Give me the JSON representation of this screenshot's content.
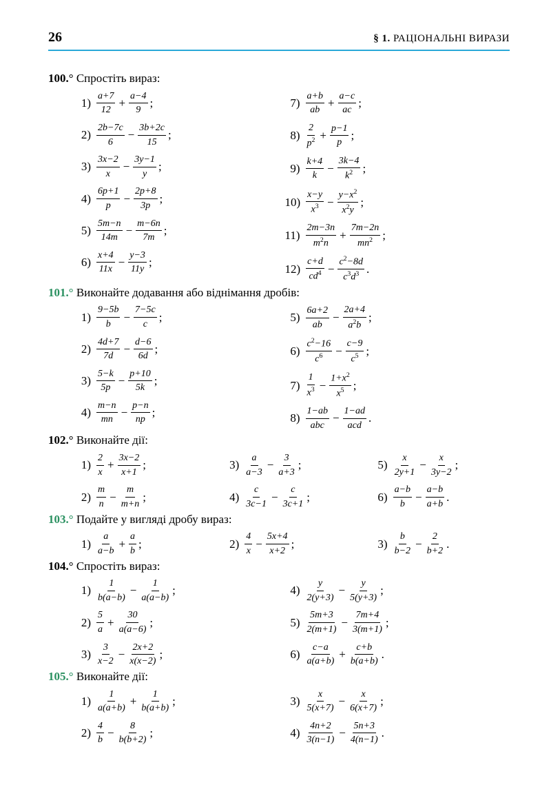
{
  "pageNumber": "26",
  "sectionTitle": {
    "prefix": "§ 1.",
    "text": "РАЦІОНАЛЬНІ ВИРАЗИ"
  },
  "problems": [
    {
      "num": "100.°",
      "green": false,
      "text": "Спростіть вираз:",
      "cols": 2,
      "items": [
        {
          "n": "1)",
          "parts": [
            {
              "t": "f",
              "nu": "a+7",
              "de": "12"
            },
            {
              "t": "op",
              "v": "+"
            },
            {
              "t": "f",
              "nu": "a−4",
              "de": "9"
            },
            {
              "t": "p",
              "v": ";"
            }
          ]
        },
        {
          "n": "2)",
          "parts": [
            {
              "t": "f",
              "nu": "2b−7c",
              "de": "6"
            },
            {
              "t": "op",
              "v": "−"
            },
            {
              "t": "f",
              "nu": "3b+2c",
              "de": "15"
            },
            {
              "t": "p",
              "v": ";"
            }
          ]
        },
        {
          "n": "3)",
          "parts": [
            {
              "t": "f",
              "nu": "3x−2",
              "de": "x"
            },
            {
              "t": "op",
              "v": "−"
            },
            {
              "t": "f",
              "nu": "3y−1",
              "de": "y"
            },
            {
              "t": "p",
              "v": ";"
            }
          ]
        },
        {
          "n": "4)",
          "parts": [
            {
              "t": "f",
              "nu": "6p+1",
              "de": "p"
            },
            {
              "t": "op",
              "v": "−"
            },
            {
              "t": "f",
              "nu": "2p+8",
              "de": "3p"
            },
            {
              "t": "p",
              "v": ";"
            }
          ]
        },
        {
          "n": "5)",
          "parts": [
            {
              "t": "f",
              "nu": "5m−n",
              "de": "14m"
            },
            {
              "t": "op",
              "v": "−"
            },
            {
              "t": "f",
              "nu": "m−6n",
              "de": "7m"
            },
            {
              "t": "p",
              "v": ";"
            }
          ]
        },
        {
          "n": "6)",
          "parts": [
            {
              "t": "f",
              "nu": "x+4",
              "de": "11x"
            },
            {
              "t": "op",
              "v": "−"
            },
            {
              "t": "f",
              "nu": "y−3",
              "de": "11y"
            },
            {
              "t": "p",
              "v": ";"
            }
          ]
        },
        {
          "n": "7)",
          "parts": [
            {
              "t": "f",
              "nu": "a+b",
              "de": "ab"
            },
            {
              "t": "op",
              "v": "+"
            },
            {
              "t": "f",
              "nu": "a−c",
              "de": "ac"
            },
            {
              "t": "p",
              "v": ";"
            }
          ]
        },
        {
          "n": "8)",
          "parts": [
            {
              "t": "f",
              "nu": "2",
              "de": "p²"
            },
            {
              "t": "op",
              "v": "+"
            },
            {
              "t": "f",
              "nu": "p−1",
              "de": "p"
            },
            {
              "t": "p",
              "v": ";"
            }
          ]
        },
        {
          "n": "9)",
          "parts": [
            {
              "t": "f",
              "nu": "k+4",
              "de": "k"
            },
            {
              "t": "op",
              "v": "−"
            },
            {
              "t": "f",
              "nu": "3k−4",
              "de": "k²"
            },
            {
              "t": "p",
              "v": ";"
            }
          ]
        },
        {
          "n": "10)",
          "parts": [
            {
              "t": "f",
              "nu": "x−y",
              "de": "x³"
            },
            {
              "t": "op",
              "v": "−"
            },
            {
              "t": "f",
              "nu": "y−x²",
              "de": "x²y"
            },
            {
              "t": "p",
              "v": ";"
            }
          ]
        },
        {
          "n": "11)",
          "parts": [
            {
              "t": "f",
              "nu": "2m−3n",
              "de": "m²n"
            },
            {
              "t": "op",
              "v": "+"
            },
            {
              "t": "f",
              "nu": "7m−2n",
              "de": "mn²"
            },
            {
              "t": "p",
              "v": ";"
            }
          ]
        },
        {
          "n": "12)",
          "parts": [
            {
              "t": "f",
              "nu": "c+d",
              "de": "cd⁴"
            },
            {
              "t": "op",
              "v": "−"
            },
            {
              "t": "f",
              "nu": "c²−8d",
              "de": "c³d³"
            },
            {
              "t": "p",
              "v": "."
            }
          ]
        }
      ]
    },
    {
      "num": "101.°",
      "green": true,
      "text": "Виконайте додавання або віднімання дробів:",
      "cols": 2,
      "items": [
        {
          "n": "1)",
          "parts": [
            {
              "t": "f",
              "nu": "9−5b",
              "de": "b"
            },
            {
              "t": "op",
              "v": "−"
            },
            {
              "t": "f",
              "nu": "7−5c",
              "de": "c"
            },
            {
              "t": "p",
              "v": ";"
            }
          ]
        },
        {
          "n": "2)",
          "parts": [
            {
              "t": "f",
              "nu": "4d+7",
              "de": "7d"
            },
            {
              "t": "op",
              "v": "−"
            },
            {
              "t": "f",
              "nu": "d−6",
              "de": "6d"
            },
            {
              "t": "p",
              "v": ";"
            }
          ]
        },
        {
          "n": "3)",
          "parts": [
            {
              "t": "f",
              "nu": "5−k",
              "de": "5p"
            },
            {
              "t": "op",
              "v": "−"
            },
            {
              "t": "f",
              "nu": "p+10",
              "de": "5k"
            },
            {
              "t": "p",
              "v": ";"
            }
          ]
        },
        {
          "n": "4)",
          "parts": [
            {
              "t": "f",
              "nu": "m−n",
              "de": "mn"
            },
            {
              "t": "op",
              "v": "−"
            },
            {
              "t": "f",
              "nu": "p−n",
              "de": "np"
            },
            {
              "t": "p",
              "v": ";"
            }
          ]
        },
        {
          "n": "5)",
          "parts": [
            {
              "t": "f",
              "nu": "6a+2",
              "de": "ab"
            },
            {
              "t": "op",
              "v": "−"
            },
            {
              "t": "f",
              "nu": "2a+4",
              "de": "a²b"
            },
            {
              "t": "p",
              "v": ";"
            }
          ]
        },
        {
          "n": "6)",
          "parts": [
            {
              "t": "f",
              "nu": "c²−16",
              "de": "c⁶"
            },
            {
              "t": "op",
              "v": "−"
            },
            {
              "t": "f",
              "nu": "c−9",
              "de": "c⁵"
            },
            {
              "t": "p",
              "v": ";"
            }
          ]
        },
        {
          "n": "7)",
          "parts": [
            {
              "t": "f",
              "nu": "1",
              "de": "x³"
            },
            {
              "t": "op",
              "v": "−"
            },
            {
              "t": "f",
              "nu": "1+x²",
              "de": "x⁵"
            },
            {
              "t": "p",
              "v": ";"
            }
          ]
        },
        {
          "n": "8)",
          "parts": [
            {
              "t": "f",
              "nu": "1−ab",
              "de": "abc"
            },
            {
              "t": "op",
              "v": "−"
            },
            {
              "t": "f",
              "nu": "1−ad",
              "de": "acd"
            },
            {
              "t": "p",
              "v": "."
            }
          ]
        }
      ]
    },
    {
      "num": "102.°",
      "green": false,
      "text": "Виконайте дії:",
      "cols": 3,
      "items": [
        {
          "n": "1)",
          "parts": [
            {
              "t": "f",
              "nu": "2",
              "de": "x"
            },
            {
              "t": "op",
              "v": "+"
            },
            {
              "t": "f",
              "nu": "3x−2",
              "de": "x+1"
            },
            {
              "t": "p",
              "v": ";"
            }
          ]
        },
        {
          "n": "2)",
          "parts": [
            {
              "t": "f",
              "nu": "m",
              "de": "n"
            },
            {
              "t": "op",
              "v": "−"
            },
            {
              "t": "f",
              "nu": "m",
              "de": "m+n"
            },
            {
              "t": "p",
              "v": ";"
            }
          ]
        },
        {
          "n": "3)",
          "parts": [
            {
              "t": "f",
              "nu": "a",
              "de": "a−3"
            },
            {
              "t": "op",
              "v": "−"
            },
            {
              "t": "f",
              "nu": "3",
              "de": "a+3"
            },
            {
              "t": "p",
              "v": ";"
            }
          ]
        },
        {
          "n": "4)",
          "parts": [
            {
              "t": "f",
              "nu": "c",
              "de": "3c−1"
            },
            {
              "t": "op",
              "v": "−"
            },
            {
              "t": "f",
              "nu": "c",
              "de": "3c+1"
            },
            {
              "t": "p",
              "v": ";"
            }
          ]
        },
        {
          "n": "5)",
          "parts": [
            {
              "t": "f",
              "nu": "x",
              "de": "2y+1"
            },
            {
              "t": "op",
              "v": "−"
            },
            {
              "t": "f",
              "nu": "x",
              "de": "3y−2"
            },
            {
              "t": "p",
              "v": ";"
            }
          ]
        },
        {
          "n": "6)",
          "parts": [
            {
              "t": "f",
              "nu": "a−b",
              "de": "b"
            },
            {
              "t": "op",
              "v": "−"
            },
            {
              "t": "f",
              "nu": "a−b",
              "de": "a+b"
            },
            {
              "t": "p",
              "v": "."
            }
          ]
        }
      ]
    },
    {
      "num": "103.°",
      "green": true,
      "text": "Подайте у вигляді дробу вираз:",
      "cols": 3,
      "items": [
        {
          "n": "1)",
          "parts": [
            {
              "t": "f",
              "nu": "a",
              "de": "a−b"
            },
            {
              "t": "op",
              "v": "+"
            },
            {
              "t": "f",
              "nu": "a",
              "de": "b"
            },
            {
              "t": "p",
              "v": ";"
            }
          ]
        },
        {
          "n": "2)",
          "parts": [
            {
              "t": "f",
              "nu": "4",
              "de": "x"
            },
            {
              "t": "op",
              "v": "−"
            },
            {
              "t": "f",
              "nu": "5x+4",
              "de": "x+2"
            },
            {
              "t": "p",
              "v": ";"
            }
          ]
        },
        {
          "n": "3)",
          "parts": [
            {
              "t": "f",
              "nu": "b",
              "de": "b−2"
            },
            {
              "t": "op",
              "v": "−"
            },
            {
              "t": "f",
              "nu": "2",
              "de": "b+2"
            },
            {
              "t": "p",
              "v": "."
            }
          ]
        }
      ]
    },
    {
      "num": "104.°",
      "green": false,
      "text": "Спростіть вираз:",
      "cols": 2,
      "items": [
        {
          "n": "1)",
          "parts": [
            {
              "t": "f",
              "nu": "1",
              "de": "b(a−b)"
            },
            {
              "t": "op",
              "v": "−"
            },
            {
              "t": "f",
              "nu": "1",
              "de": "a(a−b)"
            },
            {
              "t": "p",
              "v": ";"
            }
          ]
        },
        {
          "n": "2)",
          "parts": [
            {
              "t": "f",
              "nu": "5",
              "de": "a"
            },
            {
              "t": "op",
              "v": "+"
            },
            {
              "t": "f",
              "nu": "30",
              "de": "a(a−6)"
            },
            {
              "t": "p",
              "v": ";"
            }
          ]
        },
        {
          "n": "3)",
          "parts": [
            {
              "t": "f",
              "nu": "3",
              "de": "x−2"
            },
            {
              "t": "op",
              "v": "−"
            },
            {
              "t": "f",
              "nu": "2x+2",
              "de": "x(x−2)"
            },
            {
              "t": "p",
              "v": ";"
            }
          ]
        },
        {
          "n": "4)",
          "parts": [
            {
              "t": "f",
              "nu": "y",
              "de": "2(y+3)"
            },
            {
              "t": "op",
              "v": "−"
            },
            {
              "t": "f",
              "nu": "y",
              "de": "5(y+3)"
            },
            {
              "t": "p",
              "v": ";"
            }
          ]
        },
        {
          "n": "5)",
          "parts": [
            {
              "t": "f",
              "nu": "5m+3",
              "de": "2(m+1)"
            },
            {
              "t": "op",
              "v": "−"
            },
            {
              "t": "f",
              "nu": "7m+4",
              "de": "3(m+1)"
            },
            {
              "t": "p",
              "v": ";"
            }
          ]
        },
        {
          "n": "6)",
          "parts": [
            {
              "t": "f",
              "nu": "c−a",
              "de": "a(a+b)"
            },
            {
              "t": "op",
              "v": "+"
            },
            {
              "t": "f",
              "nu": "c+b",
              "de": "b(a+b)"
            },
            {
              "t": "p",
              "v": "."
            }
          ]
        }
      ]
    },
    {
      "num": "105.°",
      "green": true,
      "text": "Виконайте дії:",
      "cols": 2,
      "items": [
        {
          "n": "1)",
          "parts": [
            {
              "t": "f",
              "nu": "1",
              "de": "a(a+b)"
            },
            {
              "t": "op",
              "v": "+"
            },
            {
              "t": "f",
              "nu": "1",
              "de": "b(a+b)"
            },
            {
              "t": "p",
              "v": ";"
            }
          ]
        },
        {
          "n": "2)",
          "parts": [
            {
              "t": "f",
              "nu": "4",
              "de": "b"
            },
            {
              "t": "op",
              "v": "−"
            },
            {
              "t": "f",
              "nu": "8",
              "de": "b(b+2)"
            },
            {
              "t": "p",
              "v": ";"
            }
          ]
        },
        {
          "n": "3)",
          "parts": [
            {
              "t": "f",
              "nu": "x",
              "de": "5(x+7)"
            },
            {
              "t": "op",
              "v": "−"
            },
            {
              "t": "f",
              "nu": "x",
              "de": "6(x+7)"
            },
            {
              "t": "p",
              "v": ";"
            }
          ]
        },
        {
          "n": "4)",
          "parts": [
            {
              "t": "f",
              "nu": "4n+2",
              "de": "3(n−1)"
            },
            {
              "t": "op",
              "v": "−"
            },
            {
              "t": "f",
              "nu": "5n+3",
              "de": "4(n−1)"
            },
            {
              "t": "p",
              "v": "."
            }
          ]
        }
      ]
    }
  ]
}
